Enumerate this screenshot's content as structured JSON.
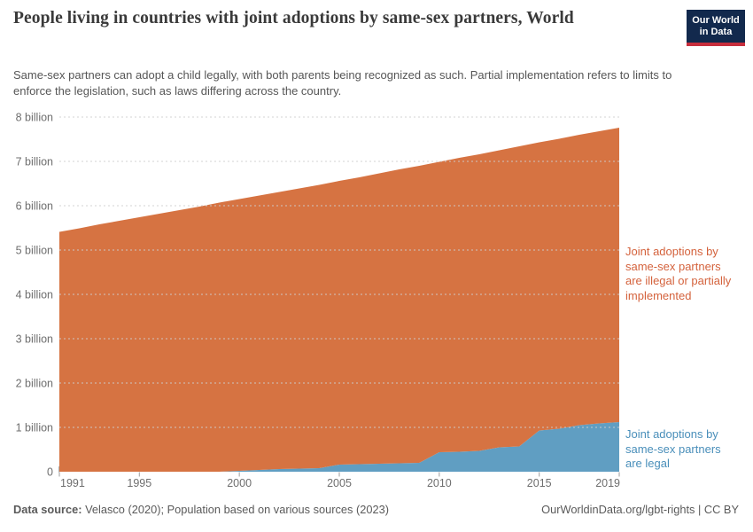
{
  "header": {
    "title": "People living in countries with joint adoptions by same-sex partners, World",
    "subtitle": "Same-sex partners can adopt a child legally, with both parents being recognized as such. Partial implementation refers to limits to enforce the legislation, such as laws differing across the country.",
    "logo": {
      "line1": "Our World",
      "line2": "in Data"
    }
  },
  "chart_data": {
    "type": "area",
    "stacked": true,
    "title": "People living in countries with joint adoptions by same-sex partners, World",
    "xlabel": "",
    "ylabel": "",
    "ylim": [
      0,
      8
    ],
    "grid": "dashed-horizontal",
    "x": [
      1991,
      1992,
      1993,
      1994,
      1995,
      1996,
      1997,
      1998,
      1999,
      2000,
      2001,
      2002,
      2003,
      2004,
      2005,
      2006,
      2007,
      2008,
      2009,
      2010,
      2011,
      2012,
      2013,
      2014,
      2015,
      2016,
      2017,
      2018,
      2019
    ],
    "series": [
      {
        "name": "Joint adoptions by same-sex partners are legal",
        "color": "#609ec2",
        "unit": "billion people",
        "values": [
          0,
          0,
          0,
          0,
          0,
          0,
          0,
          0,
          0,
          0.02,
          0.04,
          0.06,
          0.07,
          0.08,
          0.16,
          0.17,
          0.18,
          0.19,
          0.2,
          0.44,
          0.45,
          0.47,
          0.55,
          0.57,
          0.93,
          0.97,
          1.05,
          1.09,
          1.12
        ]
      },
      {
        "name": "Joint adoptions by same-sex partners are illegal or partially implemented",
        "color": "#d67342",
        "unit": "billion people",
        "values": [
          5.41,
          5.49,
          5.58,
          5.66,
          5.74,
          5.82,
          5.9,
          5.98,
          6.07,
          6.13,
          6.19,
          6.25,
          6.32,
          6.39,
          6.4,
          6.47,
          6.55,
          6.63,
          6.7,
          6.55,
          6.63,
          6.69,
          6.7,
          6.77,
          6.5,
          6.54,
          6.55,
          6.59,
          6.64
        ]
      }
    ],
    "y_ticks": {
      "values": [
        0,
        1,
        2,
        3,
        4,
        5,
        6,
        7,
        8
      ],
      "labels": [
        "0",
        "1 billion",
        "2 billion",
        "3 billion",
        "4 billion",
        "5 billion",
        "6 billion",
        "7 billion",
        "8 billion"
      ]
    },
    "x_ticks": [
      1991,
      1995,
      2000,
      2005,
      2010,
      2015,
      2019
    ],
    "legend_position": "right-annotations"
  },
  "annotations": {
    "illegal_label": "Joint adoptions by same-sex partners are illegal or partially implemented",
    "legal_label": "Joint adoptions by same-sex partners are legal"
  },
  "footer": {
    "source_label": "Data source:",
    "source_text": " Velasco (2020); Population based on various sources (2023)",
    "link_text": "OurWorldinData.org/lgbt-rights | CC BY"
  },
  "colors": {
    "area_illegal": "#d67342",
    "area_legal": "#609ec2",
    "label_illegal": "#d4623c",
    "label_legal": "#4a8fba",
    "grid": "#cfcfcf",
    "tick_text": "#6e6e6e",
    "logo_bg": "#12294d",
    "logo_stripe": "#c72e3d"
  }
}
